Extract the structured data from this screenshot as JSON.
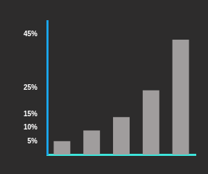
{
  "chart_data": {
    "type": "bar",
    "categories": [
      null,
      null,
      null,
      null,
      null
    ],
    "values": [
      5,
      9,
      14,
      24,
      43
    ],
    "color": "#a09d9d",
    "ylim": [
      0,
      50
    ],
    "yticks": [
      {
        "value": 5,
        "label": "5%"
      },
      {
        "value": 10,
        "label": "10%"
      },
      {
        "value": 15,
        "label": "15%"
      },
      {
        "value": 25,
        "label": "25%"
      },
      {
        "value": 45,
        "label": "45%"
      }
    ],
    "grid": false,
    "tick_labels": "y"
  }
}
